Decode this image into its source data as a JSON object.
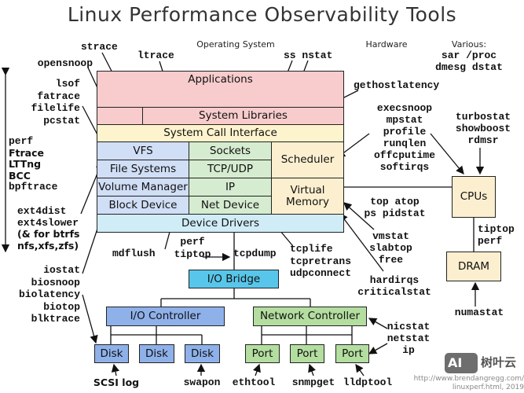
{
  "title": "Linux Performance Observability Tools",
  "headers": {
    "os": "Operating System",
    "hardware": "Hardware",
    "various": "Various:"
  },
  "various_tools": [
    "sar /proc",
    "dmesg dstat"
  ],
  "stack": {
    "applications": "Applications",
    "system_libraries": "System Libraries",
    "syscall": "System Call Interface",
    "vfs": "VFS",
    "file_systems": "File Systems",
    "volume_manager": "Volume Manager",
    "block_device": "Block Device",
    "sockets": "Sockets",
    "tcp_udp": "TCP/UDP",
    "ip": "IP",
    "net_device": "Net Device",
    "scheduler": "Scheduler",
    "virtual_memory": "Virtual Memory",
    "device_drivers": "Device Drivers"
  },
  "hardware": {
    "io_bridge": "I/O Bridge",
    "io_controller": "I/O Controller",
    "network_controller": "Network Controller",
    "disks": [
      "Disk",
      "Disk",
      "Disk"
    ],
    "ports": [
      "Port",
      "Port",
      "Port"
    ],
    "cpus": "CPUs",
    "dram": "DRAM"
  },
  "tools": {
    "strace": "strace",
    "ltrace": "ltrace",
    "opensnoop": "opensnoop",
    "file": [
      "lsof",
      "fatrace",
      "filelife",
      "pcstat"
    ],
    "ss_nstat": "ss nstat",
    "gethostlatency": "gethostlatency",
    "sched": [
      "execsnoop",
      "mpstat",
      "profile",
      "runqlen",
      "offcputime",
      "softirqs"
    ],
    "cpu_hw": [
      "turbostat",
      "showboost",
      "rdmsr"
    ],
    "tracers": [
      "perf",
      "Ftrace",
      "LTTng",
      "BCC",
      "bpftrace"
    ],
    "fs": [
      "ext4dist",
      "ext4slower",
      "(& for btrfs",
      "nfs,xfs,zfs)"
    ],
    "top": [
      "top atop",
      "ps pidstat"
    ],
    "vm": [
      "vmstat",
      "slabtop",
      "free"
    ],
    "irq": [
      "hardirqs",
      "criticalstat"
    ],
    "tiptop_perf": [
      "tiptop",
      "perf"
    ],
    "numastat": "numastat",
    "block": [
      "iostat",
      "biosnoop",
      "biolatency",
      "biotop",
      "blktrace"
    ],
    "mdflush": "mdflush",
    "perf_tiptop": [
      "perf",
      "tiptop"
    ],
    "tcpdump": "tcpdump",
    "tcp": [
      "tcplife",
      "tcpretrans",
      "udpconnect"
    ],
    "net": [
      "nicstat",
      "netstat",
      "ip"
    ],
    "scsi_log": "SCSI log",
    "swapon": "swapon",
    "ethtool": "ethtool",
    "snmpget": "snmpget",
    "lldptool": "lldptool"
  },
  "watermark": {
    "brand": "树叶云",
    "logo": "AI",
    "url_line1": "http://www.brendangregg.com/",
    "url_line2": "linuxperf.html, 2019"
  }
}
